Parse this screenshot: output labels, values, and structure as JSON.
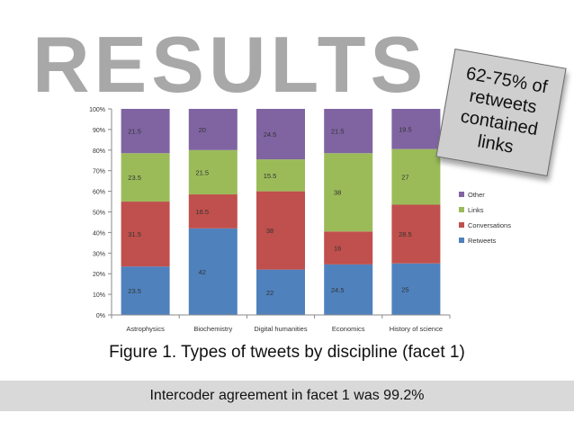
{
  "heading": "RESULTS",
  "callout": "62-75% of retweets contained links",
  "caption": "Figure 1. Types of tweets by discipline (facet 1)",
  "footer_note": "Intercoder agreement in facet 1 was 99.2%",
  "chart_data": {
    "type": "bar",
    "stacked": true,
    "percent_stacked": true,
    "categories": [
      "Astrophysics",
      "Biochemistry",
      "Digital humanities",
      "Economics",
      "History of science"
    ],
    "series": [
      {
        "name": "Retweets",
        "values": [
          23.5,
          42,
          22,
          24.5,
          25
        ],
        "color": "#4f81bd"
      },
      {
        "name": "Conversations",
        "values": [
          31.5,
          16.5,
          38,
          16,
          28.5
        ],
        "color": "#c0504d"
      },
      {
        "name": "Links",
        "values": [
          23.5,
          21.5,
          15.5,
          38,
          27
        ],
        "color": "#9bbb59"
      },
      {
        "name": "Other",
        "values": [
          21.5,
          20,
          24.5,
          21.5,
          19.5
        ],
        "color": "#8064a2"
      }
    ],
    "ylim": [
      0,
      100
    ],
    "yticks": [
      "0%",
      "10%",
      "20%",
      "30%",
      "40%",
      "50%",
      "60%",
      "70%",
      "80%",
      "90%",
      "100%"
    ],
    "legend_position": "right",
    "grid": false
  }
}
